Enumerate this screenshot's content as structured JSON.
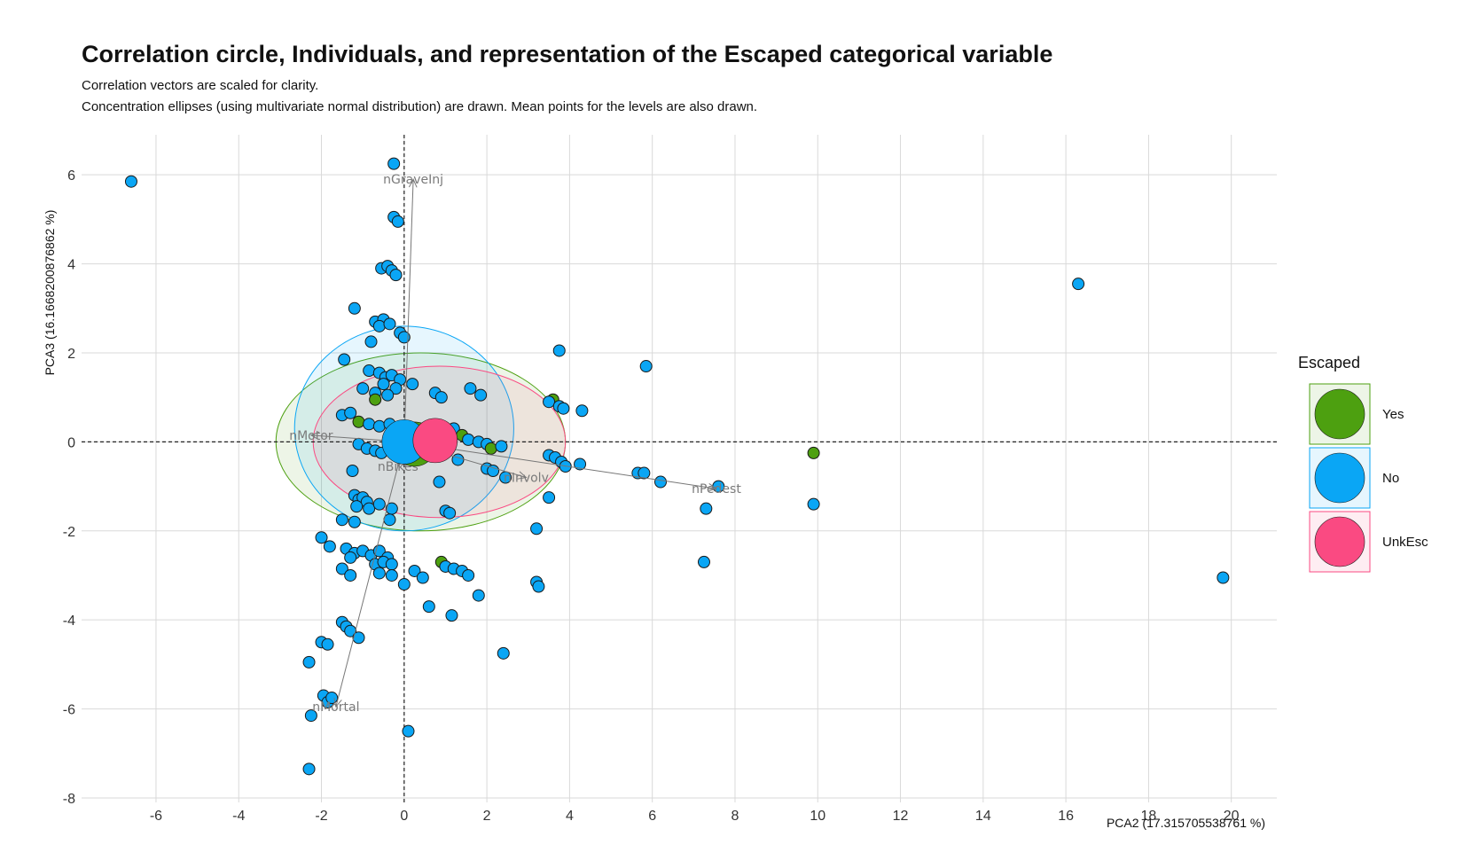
{
  "chart_data": {
    "type": "scatter",
    "title": "Correlation circle, Individuals, and representation of the Escaped categorical variable",
    "subtitle_lines": [
      "Correlation vectors are scaled for clarity.",
      "Concentration ellipses (using multivariate normal distribution) are drawn. Mean points for the levels are also drawn."
    ],
    "xlabel": "PCA2 (17.315705538761 %)",
    "ylabel": "PCA3 (16.1668200876862 %)",
    "xlim": [
      -7.8,
      21.1
    ],
    "ylim": [
      -8.1,
      6.9
    ],
    "x_ticks": [
      -6,
      -4,
      -2,
      0,
      2,
      4,
      6,
      8,
      10,
      12,
      14,
      16,
      18,
      20
    ],
    "y_ticks": [
      -8,
      -6,
      -4,
      -2,
      0,
      2,
      4,
      6
    ],
    "grid": true,
    "legend_title": "Escaped",
    "legend_position": "right",
    "levels": [
      {
        "name": "Yes",
        "color": "#4da010"
      },
      {
        "name": "No",
        "color": "#0aa6f5"
      },
      {
        "name": "UnkEsc",
        "color": "#fa4a82"
      }
    ],
    "ellipses": [
      {
        "level": "Yes",
        "cx": 0.4,
        "cy": 0.0,
        "rx": 3.5,
        "ry": 2.0
      },
      {
        "level": "No",
        "cx": 0.0,
        "cy": 0.3,
        "rx": 2.65,
        "ry": 2.3
      },
      {
        "level": "UnkEsc",
        "cx": 0.85,
        "cy": 0.0,
        "rx": 3.05,
        "ry": 1.7
      }
    ],
    "means": [
      {
        "level": "Yes",
        "x": 0.25,
        "y": -0.05
      },
      {
        "level": "No",
        "x": 0.0,
        "y": 0.0
      },
      {
        "level": "UnkEsc",
        "x": 0.75,
        "y": 0.03
      }
    ],
    "vectors": [
      {
        "name": "nGraveInj",
        "x": 0.22,
        "y": 5.9
      },
      {
        "name": "nMotor",
        "x": -2.25,
        "y": 0.15
      },
      {
        "name": "nBikes",
        "x": -0.15,
        "y": -0.55
      },
      {
        "name": "nInvolv",
        "x": 2.95,
        "y": -0.8
      },
      {
        "name": "nPedest",
        "x": 7.55,
        "y": -1.05
      },
      {
        "name": "nMortal",
        "x": -1.65,
        "y": -5.95
      }
    ],
    "points": [
      {
        "x": -6.6,
        "y": 5.85,
        "level": "No"
      },
      {
        "x": 16.3,
        "y": 3.55,
        "level": "No"
      },
      {
        "x": 19.8,
        "y": -3.05,
        "level": "No"
      },
      {
        "x": 9.9,
        "y": -0.25,
        "level": "Yes"
      },
      {
        "x": 9.9,
        "y": -1.4,
        "level": "No"
      },
      {
        "x": -0.25,
        "y": 6.25,
        "level": "No"
      },
      {
        "x": -0.25,
        "y": 5.05,
        "level": "No"
      },
      {
        "x": -0.15,
        "y": 4.95,
        "level": "No"
      },
      {
        "x": -0.55,
        "y": 3.9,
        "level": "No"
      },
      {
        "x": -0.4,
        "y": 3.95,
        "level": "No"
      },
      {
        "x": -0.3,
        "y": 3.85,
        "level": "No"
      },
      {
        "x": -0.2,
        "y": 3.75,
        "level": "No"
      },
      {
        "x": -1.2,
        "y": 3.0,
        "level": "No"
      },
      {
        "x": -0.7,
        "y": 2.7,
        "level": "No"
      },
      {
        "x": -0.5,
        "y": 2.75,
        "level": "No"
      },
      {
        "x": -0.6,
        "y": 2.6,
        "level": "No"
      },
      {
        "x": -0.35,
        "y": 2.65,
        "level": "No"
      },
      {
        "x": -0.1,
        "y": 2.45,
        "level": "No"
      },
      {
        "x": 0.0,
        "y": 2.35,
        "level": "No"
      },
      {
        "x": -0.8,
        "y": 2.25,
        "level": "No"
      },
      {
        "x": 3.75,
        "y": 2.05,
        "level": "No"
      },
      {
        "x": 5.85,
        "y": 1.7,
        "level": "No"
      },
      {
        "x": -1.45,
        "y": 1.85,
        "level": "No"
      },
      {
        "x": -0.85,
        "y": 1.6,
        "level": "No"
      },
      {
        "x": -0.6,
        "y": 1.55,
        "level": "No"
      },
      {
        "x": -0.45,
        "y": 1.45,
        "level": "No"
      },
      {
        "x": -0.3,
        "y": 1.5,
        "level": "No"
      },
      {
        "x": -0.1,
        "y": 1.4,
        "level": "No"
      },
      {
        "x": -0.5,
        "y": 1.3,
        "level": "No"
      },
      {
        "x": -0.2,
        "y": 1.2,
        "level": "No"
      },
      {
        "x": 0.2,
        "y": 1.3,
        "level": "No"
      },
      {
        "x": -1.0,
        "y": 1.2,
        "level": "No"
      },
      {
        "x": -0.7,
        "y": 1.1,
        "level": "No"
      },
      {
        "x": -0.4,
        "y": 1.05,
        "level": "No"
      },
      {
        "x": 0.75,
        "y": 1.1,
        "level": "No"
      },
      {
        "x": 0.9,
        "y": 1.0,
        "level": "No"
      },
      {
        "x": 1.6,
        "y": 1.2,
        "level": "No"
      },
      {
        "x": 1.85,
        "y": 1.05,
        "level": "No"
      },
      {
        "x": -0.7,
        "y": 0.95,
        "level": "Yes"
      },
      {
        "x": 3.6,
        "y": 0.95,
        "level": "Yes"
      },
      {
        "x": 3.5,
        "y": 0.9,
        "level": "No"
      },
      {
        "x": 3.75,
        "y": 0.8,
        "level": "No"
      },
      {
        "x": 3.85,
        "y": 0.75,
        "level": "No"
      },
      {
        "x": 4.3,
        "y": 0.7,
        "level": "No"
      },
      {
        "x": -1.5,
        "y": 0.6,
        "level": "No"
      },
      {
        "x": -1.3,
        "y": 0.65,
        "level": "No"
      },
      {
        "x": -1.1,
        "y": 0.45,
        "level": "Yes"
      },
      {
        "x": -0.85,
        "y": 0.4,
        "level": "No"
      },
      {
        "x": -0.6,
        "y": 0.35,
        "level": "No"
      },
      {
        "x": -0.35,
        "y": 0.4,
        "level": "No"
      },
      {
        "x": 1.2,
        "y": 0.3,
        "level": "No"
      },
      {
        "x": 1.4,
        "y": 0.15,
        "level": "Yes"
      },
      {
        "x": 1.55,
        "y": 0.05,
        "level": "No"
      },
      {
        "x": 1.8,
        "y": 0.0,
        "level": "No"
      },
      {
        "x": 2.0,
        "y": -0.05,
        "level": "No"
      },
      {
        "x": 2.1,
        "y": -0.15,
        "level": "Yes"
      },
      {
        "x": 2.35,
        "y": -0.1,
        "level": "No"
      },
      {
        "x": -1.1,
        "y": -0.05,
        "level": "No"
      },
      {
        "x": -0.9,
        "y": -0.15,
        "level": "No"
      },
      {
        "x": -0.7,
        "y": -0.2,
        "level": "No"
      },
      {
        "x": -0.55,
        "y": -0.25,
        "level": "No"
      },
      {
        "x": 1.3,
        "y": -0.4,
        "level": "No"
      },
      {
        "x": 3.5,
        "y": -0.3,
        "level": "No"
      },
      {
        "x": 3.65,
        "y": -0.35,
        "level": "No"
      },
      {
        "x": 3.8,
        "y": -0.45,
        "level": "No"
      },
      {
        "x": 3.9,
        "y": -0.55,
        "level": "No"
      },
      {
        "x": 4.25,
        "y": -0.5,
        "level": "No"
      },
      {
        "x": 2.0,
        "y": -0.6,
        "level": "No"
      },
      {
        "x": 2.15,
        "y": -0.65,
        "level": "No"
      },
      {
        "x": 2.45,
        "y": -0.8,
        "level": "No"
      },
      {
        "x": 5.65,
        "y": -0.7,
        "level": "No"
      },
      {
        "x": 5.8,
        "y": -0.7,
        "level": "No"
      },
      {
        "x": 6.2,
        "y": -0.9,
        "level": "No"
      },
      {
        "x": 7.6,
        "y": -1.0,
        "level": "No"
      },
      {
        "x": 7.3,
        "y": -1.5,
        "level": "No"
      },
      {
        "x": 7.25,
        "y": -2.7,
        "level": "No"
      },
      {
        "x": -1.25,
        "y": -0.65,
        "level": "No"
      },
      {
        "x": 0.85,
        "y": -0.9,
        "level": "No"
      },
      {
        "x": 3.5,
        "y": -1.25,
        "level": "No"
      },
      {
        "x": -1.2,
        "y": -1.2,
        "level": "No"
      },
      {
        "x": -1.1,
        "y": -1.3,
        "level": "No"
      },
      {
        "x": -1.0,
        "y": -1.25,
        "level": "No"
      },
      {
        "x": -0.9,
        "y": -1.35,
        "level": "No"
      },
      {
        "x": -1.15,
        "y": -1.45,
        "level": "No"
      },
      {
        "x": -0.85,
        "y": -1.5,
        "level": "No"
      },
      {
        "x": -0.6,
        "y": -1.4,
        "level": "No"
      },
      {
        "x": -0.3,
        "y": -1.5,
        "level": "No"
      },
      {
        "x": -1.5,
        "y": -1.75,
        "level": "No"
      },
      {
        "x": -1.2,
        "y": -1.8,
        "level": "No"
      },
      {
        "x": -0.35,
        "y": -1.75,
        "level": "No"
      },
      {
        "x": 1.0,
        "y": -1.55,
        "level": "No"
      },
      {
        "x": 1.1,
        "y": -1.6,
        "level": "No"
      },
      {
        "x": 3.2,
        "y": -1.95,
        "level": "No"
      },
      {
        "x": -2.0,
        "y": -2.15,
        "level": "No"
      },
      {
        "x": -1.8,
        "y": -2.35,
        "level": "No"
      },
      {
        "x": -1.4,
        "y": -2.4,
        "level": "No"
      },
      {
        "x": -1.2,
        "y": -2.5,
        "level": "No"
      },
      {
        "x": -1.0,
        "y": -2.45,
        "level": "No"
      },
      {
        "x": -0.8,
        "y": -2.55,
        "level": "No"
      },
      {
        "x": -0.6,
        "y": -2.45,
        "level": "No"
      },
      {
        "x": -0.4,
        "y": -2.6,
        "level": "No"
      },
      {
        "x": -1.3,
        "y": -2.6,
        "level": "No"
      },
      {
        "x": -1.5,
        "y": -2.85,
        "level": "No"
      },
      {
        "x": -1.3,
        "y": -3.0,
        "level": "No"
      },
      {
        "x": -0.7,
        "y": -2.75,
        "level": "No"
      },
      {
        "x": -0.5,
        "y": -2.7,
        "level": "No"
      },
      {
        "x": -0.3,
        "y": -2.75,
        "level": "No"
      },
      {
        "x": -0.6,
        "y": -2.95,
        "level": "No"
      },
      {
        "x": -0.3,
        "y": -3.0,
        "level": "No"
      },
      {
        "x": 0.9,
        "y": -2.7,
        "level": "Yes"
      },
      {
        "x": 1.0,
        "y": -2.8,
        "level": "No"
      },
      {
        "x": 1.2,
        "y": -2.85,
        "level": "No"
      },
      {
        "x": 1.4,
        "y": -2.9,
        "level": "No"
      },
      {
        "x": 1.55,
        "y": -3.0,
        "level": "No"
      },
      {
        "x": 0.25,
        "y": -2.9,
        "level": "No"
      },
      {
        "x": 0.45,
        "y": -3.05,
        "level": "No"
      },
      {
        "x": 0.0,
        "y": -3.2,
        "level": "No"
      },
      {
        "x": 3.2,
        "y": -3.15,
        "level": "No"
      },
      {
        "x": 3.25,
        "y": -3.25,
        "level": "No"
      },
      {
        "x": 1.8,
        "y": -3.45,
        "level": "No"
      },
      {
        "x": 0.6,
        "y": -3.7,
        "level": "No"
      },
      {
        "x": 1.15,
        "y": -3.9,
        "level": "No"
      },
      {
        "x": -1.5,
        "y": -4.05,
        "level": "No"
      },
      {
        "x": -1.4,
        "y": -4.15,
        "level": "No"
      },
      {
        "x": -1.3,
        "y": -4.25,
        "level": "No"
      },
      {
        "x": -1.1,
        "y": -4.4,
        "level": "No"
      },
      {
        "x": -2.0,
        "y": -4.5,
        "level": "No"
      },
      {
        "x": -1.85,
        "y": -4.55,
        "level": "No"
      },
      {
        "x": 2.4,
        "y": -4.75,
        "level": "No"
      },
      {
        "x": -2.3,
        "y": -4.95,
        "level": "No"
      },
      {
        "x": -1.95,
        "y": -5.7,
        "level": "No"
      },
      {
        "x": -1.85,
        "y": -5.85,
        "level": "No"
      },
      {
        "x": -1.75,
        "y": -5.75,
        "level": "No"
      },
      {
        "x": -2.25,
        "y": -6.15,
        "level": "No"
      },
      {
        "x": 0.1,
        "y": -6.5,
        "level": "No"
      },
      {
        "x": -2.3,
        "y": -7.35,
        "level": "No"
      }
    ]
  }
}
